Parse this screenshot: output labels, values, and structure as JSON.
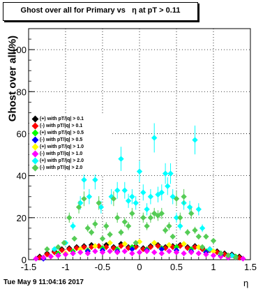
{
  "title": "Ghost over all for Primary vs   η at pT > 0.11",
  "footer_date": "Tue May  9 11:04:16 2017",
  "chart_data": {
    "type": "scatter",
    "title": "Ghost over all for Primary vs   η at pT > 0.11",
    "xlabel": "η",
    "ylabel": "Ghost over all(%)",
    "xlim": [
      -1.5,
      1.5
    ],
    "ylim": [
      0,
      110
    ],
    "xticks": [
      "-1.5",
      "-1",
      "-0.5",
      "0",
      "0.5",
      "1",
      "1.5"
    ],
    "yticks": [
      "0",
      "20",
      "40",
      "60",
      "80",
      "100"
    ],
    "grid": true,
    "legend_position": "left-middle",
    "series": [
      {
        "name": "(+) with pT/|q| > 0.1",
        "color": "#000000",
        "x": [
          -1.35,
          -1.25,
          -1.15,
          -1.05,
          -0.95,
          -0.85,
          -0.75,
          -0.65,
          -0.55,
          -0.45,
          -0.35,
          -0.25,
          -0.15,
          -0.05,
          0.05,
          0.15,
          0.25,
          0.35,
          0.45,
          0.55,
          0.65,
          0.75,
          0.85,
          0.95,
          1.05,
          1.15,
          1.25,
          1.35
        ],
        "y": [
          1.5,
          3.0,
          4.0,
          5.0,
          5.5,
          6.0,
          6.5,
          7.0,
          6.5,
          7.0,
          6.0,
          7.5,
          6.0,
          6.5,
          5.5,
          6.5,
          7.0,
          6.0,
          6.5,
          7.0,
          6.0,
          6.5,
          5.5,
          5.0,
          4.0,
          3.0,
          2.5,
          1.5
        ]
      },
      {
        "name": "(-) with pT/|q| > 0.1",
        "color": "#ff0000",
        "x": [
          -1.35,
          -1.25,
          -1.15,
          -1.05,
          -0.95,
          -0.85,
          -0.75,
          -0.65,
          -0.55,
          -0.45,
          -0.35,
          -0.25,
          -0.15,
          -0.05,
          0.05,
          0.15,
          0.25,
          0.35,
          0.45,
          0.55,
          0.65,
          0.75,
          0.85,
          0.95,
          1.05,
          1.15,
          1.25,
          1.35
        ],
        "y": [
          1.0,
          2.5,
          3.5,
          4.5,
          5.0,
          5.5,
          6.0,
          6.0,
          6.5,
          6.0,
          5.5,
          6.5,
          5.5,
          6.0,
          5.0,
          6.0,
          6.5,
          5.5,
          6.0,
          6.5,
          5.5,
          6.0,
          5.0,
          4.5,
          3.5,
          2.5,
          2.0,
          1.0
        ]
      },
      {
        "name": "(+) with pT/|q| > 0.5",
        "color": "#00ff00",
        "x": [
          -1.3,
          -1.1,
          -0.9,
          -0.7,
          -0.5,
          -0.3,
          -0.1,
          0.1,
          0.3,
          0.5,
          0.7,
          0.9,
          1.1,
          1.3
        ],
        "y": [
          1.0,
          3.0,
          4.0,
          4.5,
          5.5,
          5.0,
          6.0,
          5.0,
          5.5,
          6.0,
          5.0,
          4.0,
          3.0,
          1.5
        ]
      },
      {
        "name": "(-) with pT/|q| > 0.5",
        "color": "#0000ff",
        "x": [
          -1.3,
          -1.1,
          -0.9,
          -0.7,
          -0.5,
          -0.3,
          -0.1,
          0.1,
          0.3,
          0.5,
          0.7,
          0.9,
          1.1,
          1.3
        ],
        "y": [
          0.5,
          2.0,
          3.0,
          4.0,
          4.5,
          4.0,
          5.0,
          4.5,
          5.0,
          4.5,
          4.0,
          3.5,
          2.0,
          1.0
        ]
      },
      {
        "name": "(+) with pT/|q| > 1.0",
        "color": "#ffff00",
        "x": [
          -1.2,
          -1.0,
          -0.8,
          -0.6,
          -0.4,
          -0.2,
          0.0,
          0.2,
          0.4,
          0.6,
          0.8,
          1.0,
          1.2
        ],
        "y": [
          1.5,
          3.0,
          5.0,
          6.5,
          8.0,
          7.5,
          8.5,
          8.0,
          7.0,
          7.5,
          6.0,
          4.0,
          2.0
        ]
      },
      {
        "name": "(-) with pT/|q| > 1.0",
        "color": "#ff00ff",
        "x": [
          -1.4,
          -1.3,
          -1.2,
          -1.1,
          -1.0,
          -0.9,
          -0.8,
          -0.7,
          -0.6,
          -0.5,
          -0.4,
          -0.3,
          -0.2,
          -0.1,
          0.0,
          0.1,
          0.2,
          0.3,
          0.4,
          0.5,
          0.6,
          0.7,
          0.8,
          0.9,
          1.0,
          1.1,
          1.2,
          1.3,
          1.4
        ],
        "y": [
          0.5,
          1.0,
          1.5,
          2.0,
          2.5,
          3.0,
          3.5,
          3.0,
          4.0,
          3.5,
          4.0,
          3.5,
          4.0,
          3.0,
          3.5,
          4.0,
          3.5,
          3.0,
          4.0,
          3.5,
          3.0,
          3.5,
          3.0,
          2.5,
          2.0,
          1.5,
          1.0,
          1.0,
          0.5
        ]
      },
      {
        "name": "(+) with pT/|q| > 2.0",
        "color": "#00ffff",
        "x": [
          -1.15,
          -1.0,
          -0.9,
          -0.8,
          -0.75,
          -0.68,
          -0.6,
          -0.52,
          -0.45,
          -0.38,
          -0.3,
          -0.25,
          -0.2,
          -0.15,
          -0.1,
          -0.05,
          0.0,
          0.05,
          0.1,
          0.15,
          0.2,
          0.25,
          0.3,
          0.35,
          0.38,
          0.42,
          0.45,
          0.5,
          0.55,
          0.6,
          0.68,
          0.75,
          0.8,
          0.85,
          0.95,
          1.1,
          1.25
        ],
        "y": [
          5.0,
          8.0,
          16.0,
          27.0,
          38.0,
          30.0,
          38.0,
          25.0,
          54.0,
          30.0,
          33.0,
          48.0,
          33.0,
          28.0,
          30.0,
          27.0,
          42.0,
          32.0,
          24.0,
          30.0,
          58.0,
          31.0,
          32.0,
          41.0,
          35.0,
          41.0,
          30.0,
          20.0,
          16.0,
          27.0,
          25.0,
          57.0,
          24.0,
          15.0,
          5.0,
          3.0,
          2.0
        ]
      },
      {
        "name": "(-) with pT/|q| > 2.0",
        "color": "#55cc55",
        "x": [
          -1.25,
          -1.1,
          -1.02,
          -0.95,
          -0.88,
          -0.82,
          -0.75,
          -0.7,
          -0.65,
          -0.6,
          -0.55,
          -0.5,
          -0.45,
          -0.4,
          -0.35,
          -0.3,
          -0.25,
          -0.2,
          -0.15,
          -0.1,
          -0.05,
          0.05,
          0.1,
          0.15,
          0.2,
          0.25,
          0.3,
          0.35,
          0.4,
          0.45,
          0.5,
          0.55,
          0.6,
          0.65,
          0.7,
          0.75,
          0.8,
          0.85,
          0.9,
          1.0,
          1.1,
          1.2,
          1.3
        ],
        "y": [
          5.0,
          6.0,
          8.0,
          20.0,
          10.0,
          25.0,
          29.0,
          15.0,
          13.0,
          17.0,
          27.0,
          10.0,
          16.0,
          12.0,
          29.0,
          20.0,
          13.0,
          18.0,
          16.0,
          22.0,
          8.0,
          20.0,
          16.0,
          20.0,
          22.0,
          21.0,
          22.0,
          14.0,
          16.0,
          11.0,
          29.0,
          20.0,
          30.0,
          13.0,
          22.0,
          14.0,
          11.0,
          6.0,
          11.0,
          9.0,
          3.0,
          2.0,
          1.0
        ]
      }
    ]
  }
}
